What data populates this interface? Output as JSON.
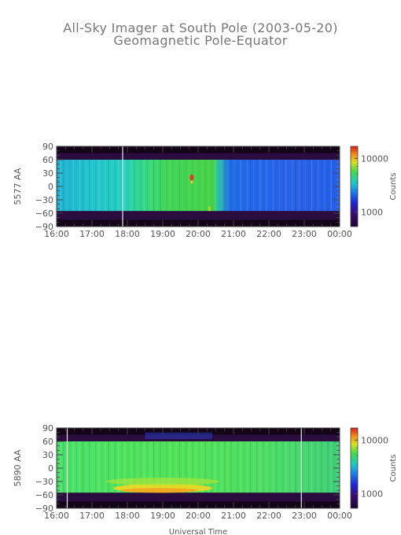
{
  "title": "All-Sky Imager at South Pole (2003-05-20)",
  "subtitle": "Geomagnetic Pole-Equator",
  "xlabel": "Universal Time",
  "chart_data": [
    {
      "type": "heatmap",
      "ylabel": "5577 AA",
      "x_ticks": [
        "16:00",
        "17:00",
        "18:00",
        "19:00",
        "20:00",
        "21:00",
        "22:00",
        "23:00",
        "00:00"
      ],
      "y_ticks": [
        90,
        60,
        30,
        0,
        -30,
        -60,
        -90
      ],
      "ylim": [
        -90,
        90
      ],
      "xlim": [
        "16:00",
        "00:00"
      ],
      "colorbar": {
        "label": "Counts",
        "scale": "log",
        "ticks": [
          10000,
          1000
        ],
        "tick_labels": [
          "10000",
          "1000"
        ]
      },
      "data_gap_marker": "17:52",
      "description_levels": "Between +60 and -55 deg: ~3000-5000 counts 16:00-18:00, ~5000-9000 counts 18:00-20:30 (green, isolated red spots ~19:50 near lat 20), ~1500-2500 counts after 20:40; outside FOV near 500 counts"
    },
    {
      "type": "heatmap",
      "ylabel": "5890 AA",
      "x_ticks": [
        "16:00",
        "17:00",
        "18:00",
        "19:00",
        "20:00",
        "21:00",
        "22:00",
        "23:00",
        "00:00"
      ],
      "y_ticks": [
        90,
        60,
        30,
        0,
        -30,
        -60,
        -90
      ],
      "ylim": [
        -90,
        90
      ],
      "xlim": [
        "16:00",
        "00:00"
      ],
      "colorbar": {
        "label": "Counts",
        "scale": "log",
        "ticks": [
          10000,
          1000
        ],
        "tick_labels": [
          "10000",
          "1000"
        ]
      },
      "data_gap_marker": [
        "16:18",
        "22:55"
      ],
      "description_levels": "Between +60 and -55 deg: ~5000-8000 counts (green), brighter ~10000-15000 counts near -45 deg 17:00-20:30; outside FOV near 500 counts"
    }
  ],
  "colors": {
    "background": "#ffffff",
    "axis": "#555555",
    "offscale": "#2a0c3e"
  }
}
